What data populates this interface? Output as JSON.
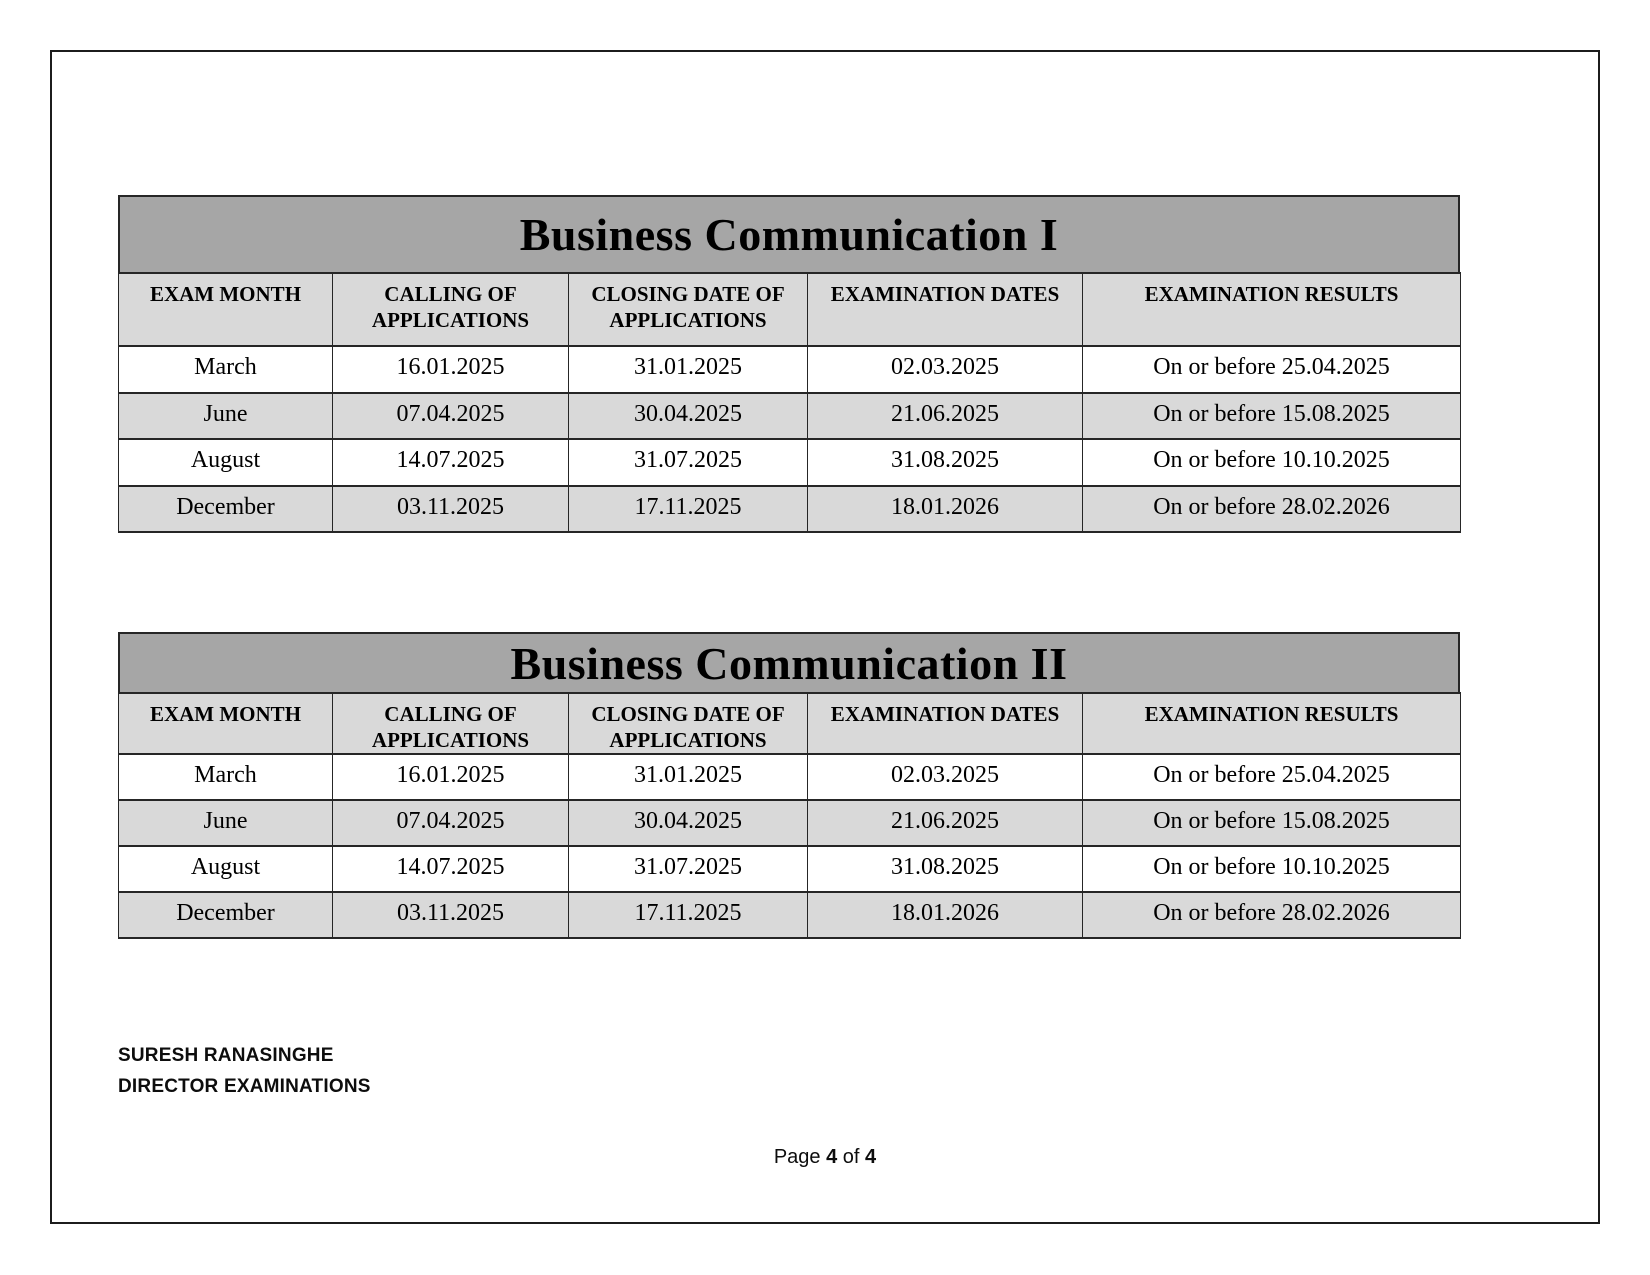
{
  "colors": {
    "title_bar_bg": "#a6a6a6",
    "header_row_bg": "#d9d9d9",
    "alt_row_bg": "#d9d9d9",
    "border": "#262626"
  },
  "tables": [
    {
      "title": "Business Communication I",
      "columns": [
        "EXAM MONTH",
        "CALLING OF APPLICATIONS",
        "CLOSING DATE OF APPLICATIONS",
        "EXAMINATION DATES",
        "EXAMINATION RESULTS"
      ],
      "rows": [
        [
          "March",
          "16.01.2025",
          "31.01.2025",
          "02.03.2025",
          "On or before 25.04.2025"
        ],
        [
          "June",
          "07.04.2025",
          "30.04.2025",
          "21.06.2025",
          "On or before 15.08.2025"
        ],
        [
          "August",
          "14.07.2025",
          "31.07.2025",
          "31.08.2025",
          "On or before 10.10.2025"
        ],
        [
          "December",
          "03.11.2025",
          "17.11.2025",
          "18.01.2026",
          "On or before 28.02.2026"
        ]
      ]
    },
    {
      "title": "Business Communication II",
      "columns": [
        "EXAM MONTH",
        "CALLING OF APPLICATIONS",
        "CLOSING DATE OF APPLICATIONS",
        "EXAMINATION DATES",
        "EXAMINATION RESULTS"
      ],
      "rows": [
        [
          "March",
          "16.01.2025",
          "31.01.2025",
          "02.03.2025",
          "On or before 25.04.2025"
        ],
        [
          "June",
          "07.04.2025",
          "30.04.2025",
          "21.06.2025",
          "On or before 15.08.2025"
        ],
        [
          "August",
          "14.07.2025",
          "31.07.2025",
          "31.08.2025",
          "On or before 10.10.2025"
        ],
        [
          "December",
          "03.11.2025",
          "17.11.2025",
          "18.01.2026",
          "On or before 28.02.2026"
        ]
      ]
    }
  ],
  "footer": {
    "name": "SURESH RANASINGHE",
    "title": "DIRECTOR EXAMINATIONS",
    "page": {
      "word": "Page ",
      "current": "4",
      "of": " of ",
      "total": "4"
    }
  }
}
